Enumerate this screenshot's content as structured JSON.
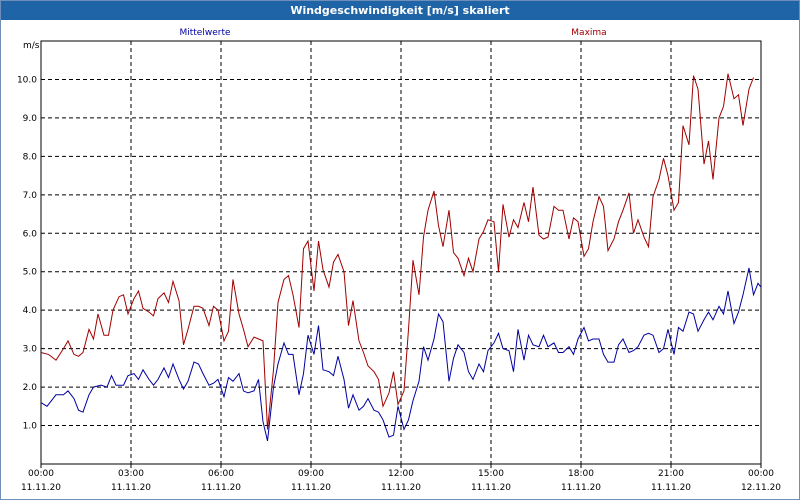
{
  "window": {
    "title": "Windgeschwindigkeit [m/s] skaliert"
  },
  "chart_data": {
    "type": "line",
    "title": "Windgeschwindigkeit [m/s] skaliert",
    "ylabel": "m/s",
    "ylim": [
      0,
      11
    ],
    "yticks": [
      "1.0",
      "2.0",
      "3.0",
      "4.0",
      "5.0",
      "6.0",
      "7.0",
      "8.0",
      "9.0",
      "10.0"
    ],
    "xlim": [
      0,
      24
    ],
    "xticks": [
      {
        "time": "00:00",
        "date": "11.11.20"
      },
      {
        "time": "03:00",
        "date": "11.11.20"
      },
      {
        "time": "06:00",
        "date": "11.11.20"
      },
      {
        "time": "09:00",
        "date": "11.11.20"
      },
      {
        "time": "12:00",
        "date": "11.11.20"
      },
      {
        "time": "15:00",
        "date": "11.11.20"
      },
      {
        "time": "18:00",
        "date": "11.11.20"
      },
      {
        "time": "21:00",
        "date": "11.11.20"
      },
      {
        "time": "00:00",
        "date": "12.11.20"
      }
    ],
    "grid": true,
    "series": [
      {
        "name": "Mittelwerte",
        "color": "#0000a0",
        "points": [
          [
            0,
            1.6
          ],
          [
            0.2,
            1.5
          ],
          [
            0.5,
            1.8
          ],
          [
            0.75,
            1.8
          ],
          [
            0.9,
            1.9
          ],
          [
            1.1,
            1.7
          ],
          [
            1.25,
            1.4
          ],
          [
            1.4,
            1.35
          ],
          [
            1.6,
            1.8
          ],
          [
            1.75,
            2
          ],
          [
            2,
            2.05
          ],
          [
            2.2,
            2
          ],
          [
            2.35,
            2.3
          ],
          [
            2.5,
            2.05
          ],
          [
            2.75,
            2.05
          ],
          [
            2.9,
            2.3
          ],
          [
            3.1,
            2.35
          ],
          [
            3.25,
            2.2
          ],
          [
            3.4,
            2.45
          ],
          [
            3.6,
            2.2
          ],
          [
            3.75,
            2.05
          ],
          [
            3.9,
            2.2
          ],
          [
            4.1,
            2.5
          ],
          [
            4.25,
            2.25
          ],
          [
            4.4,
            2.6
          ],
          [
            4.6,
            2.2
          ],
          [
            4.75,
            1.95
          ],
          [
            4.9,
            2.15
          ],
          [
            5.1,
            2.65
          ],
          [
            5.25,
            2.6
          ],
          [
            5.4,
            2.35
          ],
          [
            5.6,
            2.05
          ],
          [
            5.75,
            2.1
          ],
          [
            5.9,
            2.2
          ],
          [
            6.1,
            1.75
          ],
          [
            6.25,
            2.25
          ],
          [
            6.4,
            2.15
          ],
          [
            6.6,
            2.35
          ],
          [
            6.75,
            1.9
          ],
          [
            6.9,
            1.85
          ],
          [
            7.1,
            1.9
          ],
          [
            7.25,
            2.2
          ],
          [
            7.4,
            1.1
          ],
          [
            7.55,
            0.6
          ],
          [
            7.75,
            2
          ],
          [
            7.9,
            2.6
          ],
          [
            8.1,
            3.15
          ],
          [
            8.25,
            2.85
          ],
          [
            8.4,
            2.85
          ],
          [
            8.6,
            1.8
          ],
          [
            8.75,
            2.35
          ],
          [
            8.9,
            3.35
          ],
          [
            9.1,
            2.85
          ],
          [
            9.25,
            3.6
          ],
          [
            9.4,
            2.45
          ],
          [
            9.6,
            2.4
          ],
          [
            9.75,
            2.3
          ],
          [
            9.9,
            2.8
          ],
          [
            10.1,
            2.2
          ],
          [
            10.25,
            1.45
          ],
          [
            10.4,
            1.8
          ],
          [
            10.6,
            1.4
          ],
          [
            10.75,
            1.5
          ],
          [
            10.9,
            1.7
          ],
          [
            11.1,
            1.4
          ],
          [
            11.25,
            1.35
          ],
          [
            11.4,
            1.15
          ],
          [
            11.6,
            0.7
          ],
          [
            11.75,
            0.75
          ],
          [
            11.9,
            1.5
          ],
          [
            12.1,
            0.9
          ],
          [
            12.25,
            1.15
          ],
          [
            12.4,
            1.65
          ],
          [
            12.6,
            2.15
          ],
          [
            12.75,
            3.05
          ],
          [
            12.9,
            2.7
          ],
          [
            13.1,
            3.25
          ],
          [
            13.25,
            3.9
          ],
          [
            13.4,
            3.7
          ],
          [
            13.6,
            2.15
          ],
          [
            13.75,
            2.75
          ],
          [
            13.9,
            3.1
          ],
          [
            14.1,
            2.9
          ],
          [
            14.25,
            2.4
          ],
          [
            14.4,
            2.2
          ],
          [
            14.6,
            2.6
          ],
          [
            14.75,
            2.4
          ],
          [
            14.9,
            2.95
          ],
          [
            15.1,
            3.15
          ],
          [
            15.25,
            3.4
          ],
          [
            15.4,
            3
          ],
          [
            15.6,
            2.95
          ],
          [
            15.75,
            2.4
          ],
          [
            15.9,
            3.5
          ],
          [
            16.1,
            2.7
          ],
          [
            16.25,
            3.35
          ],
          [
            16.4,
            3.1
          ],
          [
            16.6,
            3.05
          ],
          [
            16.75,
            3.35
          ],
          [
            16.9,
            3.05
          ],
          [
            17.1,
            3.15
          ],
          [
            17.25,
            2.9
          ],
          [
            17.4,
            2.9
          ],
          [
            17.6,
            3.05
          ],
          [
            17.75,
            2.85
          ],
          [
            17.9,
            3.25
          ],
          [
            18.1,
            3.55
          ],
          [
            18.25,
            3.2
          ],
          [
            18.4,
            3.25
          ],
          [
            18.6,
            3.25
          ],
          [
            18.75,
            2.85
          ],
          [
            18.9,
            2.65
          ],
          [
            19.1,
            2.65
          ],
          [
            19.25,
            3.1
          ],
          [
            19.4,
            3.25
          ],
          [
            19.6,
            2.9
          ],
          [
            19.75,
            2.95
          ],
          [
            19.9,
            3.05
          ],
          [
            20.1,
            3.35
          ],
          [
            20.25,
            3.4
          ],
          [
            20.4,
            3.35
          ],
          [
            20.6,
            2.9
          ],
          [
            20.75,
            3
          ],
          [
            20.9,
            3.5
          ],
          [
            21.1,
            2.85
          ],
          [
            21.25,
            3.55
          ],
          [
            21.4,
            3.45
          ],
          [
            21.6,
            3.95
          ],
          [
            21.75,
            3.9
          ],
          [
            21.9,
            3.45
          ],
          [
            22.1,
            3.75
          ],
          [
            22.25,
            3.95
          ],
          [
            22.4,
            3.75
          ],
          [
            22.6,
            4.1
          ],
          [
            22.75,
            3.9
          ],
          [
            22.9,
            4.5
          ],
          [
            23.1,
            3.65
          ],
          [
            23.25,
            3.95
          ],
          [
            23.4,
            4.4
          ],
          [
            23.6,
            5.1
          ],
          [
            23.75,
            4.4
          ],
          [
            23.9,
            4.7
          ],
          [
            24.1,
            4.5
          ],
          [
            24.25,
            5.2
          ],
          [
            24.4,
            4.35
          ],
          [
            24.6,
            4.8
          ],
          [
            24.75,
            4.4
          ]
        ]
      },
      {
        "name": "Maxima",
        "color": "#a00000",
        "points": [
          [
            0,
            2.9
          ],
          [
            0.25,
            2.85
          ],
          [
            0.5,
            2.7
          ],
          [
            0.75,
            3
          ],
          [
            0.9,
            3.2
          ],
          [
            1.1,
            2.85
          ],
          [
            1.25,
            2.8
          ],
          [
            1.4,
            2.9
          ],
          [
            1.6,
            3.5
          ],
          [
            1.75,
            3.25
          ],
          [
            1.9,
            3.9
          ],
          [
            2.1,
            3.35
          ],
          [
            2.25,
            3.35
          ],
          [
            2.4,
            4
          ],
          [
            2.6,
            4.35
          ],
          [
            2.75,
            4.4
          ],
          [
            2.9,
            3.9
          ],
          [
            3.1,
            4.3
          ],
          [
            3.25,
            4.5
          ],
          [
            3.4,
            4.05
          ],
          [
            3.6,
            3.95
          ],
          [
            3.75,
            3.85
          ],
          [
            3.9,
            4.3
          ],
          [
            4.1,
            4.45
          ],
          [
            4.25,
            4.2
          ],
          [
            4.4,
            4.75
          ],
          [
            4.6,
            4.25
          ],
          [
            4.75,
            3.1
          ],
          [
            4.9,
            3.5
          ],
          [
            5.1,
            4.1
          ],
          [
            5.25,
            4.1
          ],
          [
            5.4,
            4.05
          ],
          [
            5.6,
            3.6
          ],
          [
            5.75,
            4.1
          ],
          [
            5.9,
            4
          ],
          [
            6.1,
            3.2
          ],
          [
            6.25,
            3.45
          ],
          [
            6.4,
            4.8
          ],
          [
            6.6,
            3.9
          ],
          [
            6.75,
            3.5
          ],
          [
            6.9,
            3.05
          ],
          [
            7.1,
            3.3
          ],
          [
            7.25,
            3.25
          ],
          [
            7.4,
            3.2
          ],
          [
            7.55,
            0.9
          ],
          [
            7.75,
            2.45
          ],
          [
            7.9,
            4.2
          ],
          [
            8.1,
            4.8
          ],
          [
            8.25,
            4.9
          ],
          [
            8.4,
            4.4
          ],
          [
            8.6,
            3.55
          ],
          [
            8.75,
            5.6
          ],
          [
            8.9,
            5.8
          ],
          [
            9.1,
            4.5
          ],
          [
            9.25,
            5.8
          ],
          [
            9.4,
            5.05
          ],
          [
            9.6,
            4.6
          ],
          [
            9.75,
            5.25
          ],
          [
            9.9,
            5.45
          ],
          [
            10.1,
            5
          ],
          [
            10.25,
            3.6
          ],
          [
            10.4,
            4.25
          ],
          [
            10.6,
            3.2
          ],
          [
            10.75,
            2.9
          ],
          [
            10.9,
            2.55
          ],
          [
            11.1,
            2.4
          ],
          [
            11.25,
            2.2
          ],
          [
            11.4,
            1.5
          ],
          [
            11.6,
            1.85
          ],
          [
            11.75,
            2.4
          ],
          [
            11.9,
            1.55
          ],
          [
            12.1,
            1.9
          ],
          [
            12.25,
            3.5
          ],
          [
            12.4,
            5.3
          ],
          [
            12.6,
            4.4
          ],
          [
            12.75,
            5.9
          ],
          [
            12.9,
            6.6
          ],
          [
            13.1,
            7.1
          ],
          [
            13.25,
            6.2
          ],
          [
            13.4,
            5.65
          ],
          [
            13.6,
            6.6
          ],
          [
            13.75,
            5.5
          ],
          [
            13.9,
            5.35
          ],
          [
            14.1,
            4.9
          ],
          [
            14.25,
            5.35
          ],
          [
            14.4,
            5
          ],
          [
            14.6,
            5.85
          ],
          [
            14.75,
            6.05
          ],
          [
            14.9,
            6.35
          ],
          [
            15.1,
            6.3
          ],
          [
            15.25,
            5
          ],
          [
            15.4,
            6.75
          ],
          [
            15.6,
            5.9
          ],
          [
            15.75,
            6.35
          ],
          [
            15.9,
            6.15
          ],
          [
            16.1,
            6.8
          ],
          [
            16.25,
            6.3
          ],
          [
            16.4,
            7.2
          ],
          [
            16.6,
            5.95
          ],
          [
            16.75,
            5.85
          ],
          [
            16.9,
            5.9
          ],
          [
            17.1,
            6.7
          ],
          [
            17.25,
            6.6
          ],
          [
            17.4,
            6.6
          ],
          [
            17.6,
            5.85
          ],
          [
            17.75,
            6.4
          ],
          [
            17.9,
            6.3
          ],
          [
            18.1,
            5.4
          ],
          [
            18.25,
            5.6
          ],
          [
            18.4,
            6.3
          ],
          [
            18.6,
            6.95
          ],
          [
            18.75,
            6.7
          ],
          [
            18.9,
            5.55
          ],
          [
            19.1,
            5.85
          ],
          [
            19.25,
            6.3
          ],
          [
            19.4,
            6.6
          ],
          [
            19.6,
            7.05
          ],
          [
            19.75,
            6
          ],
          [
            19.9,
            6.35
          ],
          [
            20.1,
            5.9
          ],
          [
            20.25,
            5.65
          ],
          [
            20.4,
            6.95
          ],
          [
            20.6,
            7.4
          ],
          [
            20.75,
            7.95
          ],
          [
            20.9,
            7.5
          ],
          [
            21.1,
            6.6
          ],
          [
            21.25,
            6.8
          ],
          [
            21.4,
            8.8
          ],
          [
            21.6,
            8.3
          ],
          [
            21.75,
            10.1
          ],
          [
            21.9,
            9.75
          ],
          [
            22.1,
            7.8
          ],
          [
            22.25,
            8.4
          ],
          [
            22.4,
            7.4
          ],
          [
            22.6,
            9
          ],
          [
            22.75,
            9.3
          ],
          [
            22.9,
            10.15
          ],
          [
            23.1,
            9.5
          ],
          [
            23.25,
            9.6
          ],
          [
            23.4,
            8.8
          ],
          [
            23.6,
            9.75
          ],
          [
            23.75,
            10.05
          ]
        ]
      }
    ]
  }
}
